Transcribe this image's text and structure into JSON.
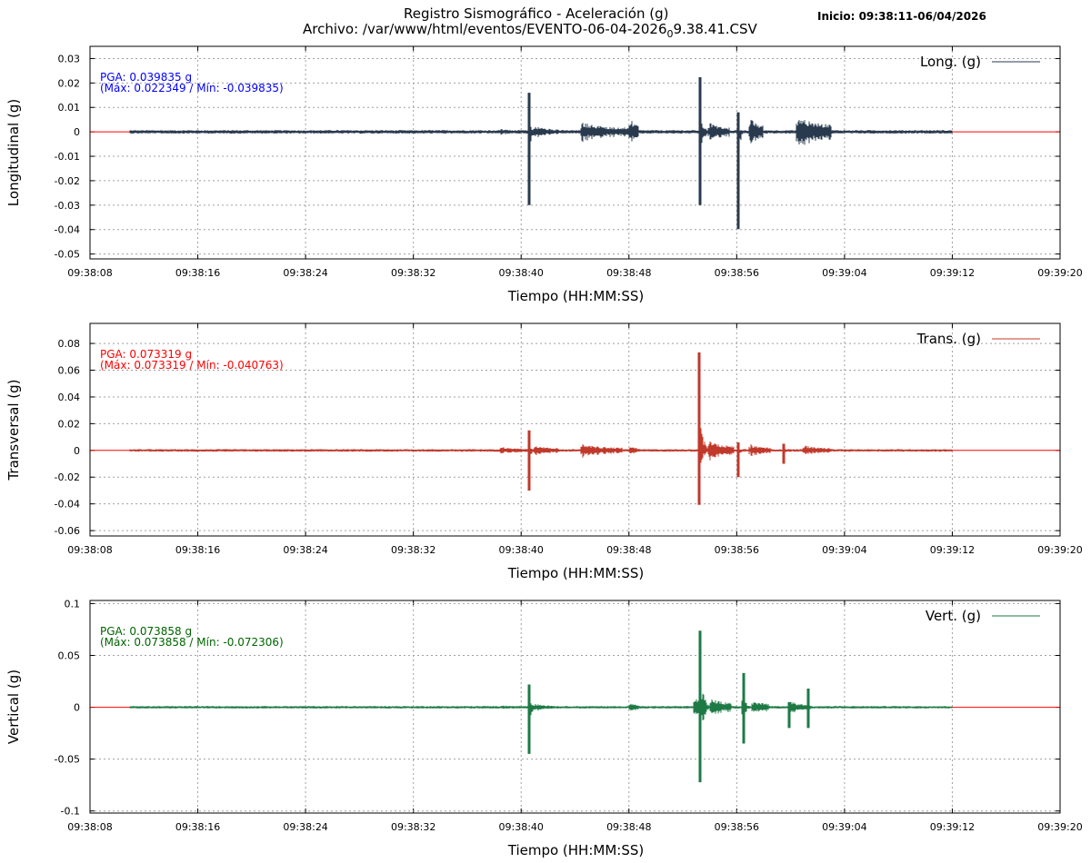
{
  "header": {
    "title_line1": "Registro Sismográfico - Aceleración (g)",
    "title_line2_prefix": "Archivo: /var/www/html/eventos/EVENTO-06-04-2026",
    "title_line2_sub": "0",
    "title_line2_suffix": "9.38.41.CSV",
    "start_info": "Inicio: 09:38:11-06/04/2026"
  },
  "chart_data": [
    {
      "type": "line",
      "ylabel": "Longitudinal (g)",
      "xlabel": "Tiempo (HH:MM:SS)",
      "legend": "Long. (g)",
      "legend_position": "top-right",
      "color": "#2a3a4e",
      "zero_line_color": "#ff0000",
      "pga_color": "#0000ff",
      "pga_line1": "PGA: 0.039835 g",
      "pga_line2": "(Máx: 0.022349 / Mín: -0.039835)",
      "max": 0.022349,
      "min": -0.039835,
      "ylim": [
        -0.052,
        0.035
      ],
      "yticks": [
        -0.05,
        -0.04,
        -0.03,
        -0.02,
        -0.01,
        0,
        0.01,
        0.02,
        0.03
      ],
      "ytick_labels": [
        "-0.05",
        "-0.04",
        "-0.03",
        "-0.02",
        "-0.01",
        "0",
        "0.01",
        "0.02",
        "0.03"
      ],
      "xlim_seconds": [
        0,
        72
      ],
      "xticks": [
        "09:38:08",
        "09:38:16",
        "09:38:24",
        "09:38:32",
        "09:38:40",
        "09:38:48",
        "09:38:56",
        "09:39:04",
        "09:39:12",
        "09:39:20"
      ],
      "grid": true,
      "record_span": [
        "09:38:11",
        "09:39:12"
      ],
      "noise_amplitude": 0.0006,
      "events": [
        {
          "t": "09:38:38.5",
          "amp": 0.0012,
          "dur": 2.0
        },
        {
          "t": "09:38:40.6",
          "pos": 0.016,
          "neg": -0.03,
          "dur": 0.5
        },
        {
          "t": "09:38:41.0",
          "amp": 0.0025,
          "dur": 1.8
        },
        {
          "t": "09:38:44.5",
          "amp": 0.004,
          "dur": 3.5
        },
        {
          "t": "09:38:48.1",
          "amp": 0.006,
          "dur": 0.6
        },
        {
          "t": "09:38:53.3",
          "pos": 0.022349,
          "neg": -0.03,
          "dur": 0.6
        },
        {
          "t": "09:38:54.0",
          "amp": 0.004,
          "dur": 1.5
        },
        {
          "t": "09:38:56.1",
          "pos": 0.008,
          "neg": -0.039835,
          "dur": 0.4
        },
        {
          "t": "09:38:57.0",
          "amp": 0.006,
          "dur": 1.0
        },
        {
          "t": "09:39:00.5",
          "amp": 0.007,
          "dur": 2.5
        }
      ]
    },
    {
      "type": "line",
      "ylabel": "Transversal (g)",
      "xlabel": "Tiempo (HH:MM:SS)",
      "legend": "Trans. (g)",
      "legend_position": "top-right",
      "color": "#c0392b",
      "zero_line_color": "#ff0000",
      "pga_color": "#ff0000",
      "pga_line1": "PGA: 0.073319 g",
      "pga_line2": "(Máx: 0.073319 / Mín: -0.040763)",
      "max": 0.073319,
      "min": -0.040763,
      "ylim": [
        -0.064,
        0.095
      ],
      "yticks": [
        -0.06,
        -0.04,
        -0.02,
        0,
        0.02,
        0.04,
        0.06,
        0.08
      ],
      "ytick_labels": [
        "-0.06",
        "-0.04",
        "-0.02",
        "0",
        "0.02",
        "0.04",
        "0.06",
        "0.08"
      ],
      "xlim_seconds": [
        0,
        72
      ],
      "xticks": [
        "09:38:08",
        "09:38:16",
        "09:38:24",
        "09:38:32",
        "09:38:40",
        "09:38:48",
        "09:38:56",
        "09:39:04",
        "09:39:12",
        "09:39:20"
      ],
      "grid": true,
      "record_span": [
        "09:38:11",
        "09:39:12"
      ],
      "noise_amplitude": 0.0008,
      "events": [
        {
          "t": "09:38:38.5",
          "amp": 0.003,
          "dur": 2.0
        },
        {
          "t": "09:38:40.6",
          "pos": 0.015,
          "neg": -0.03,
          "dur": 0.5
        },
        {
          "t": "09:38:41.0",
          "amp": 0.004,
          "dur": 1.8
        },
        {
          "t": "09:38:44.5",
          "amp": 0.005,
          "dur": 3.0
        },
        {
          "t": "09:38:48.1",
          "amp": 0.004,
          "dur": 0.6
        },
        {
          "t": "09:38:53.2",
          "pos": 0.073319,
          "neg": -0.040763,
          "dur": 0.8
        },
        {
          "t": "09:38:54.0",
          "amp": 0.008,
          "dur": 1.8
        },
        {
          "t": "09:38:56.1",
          "pos": 0.006,
          "neg": -0.02,
          "dur": 0.5
        },
        {
          "t": "09:38:57.0",
          "amp": 0.005,
          "dur": 1.5
        },
        {
          "t": "09:38:59.5",
          "pos": 0.005,
          "neg": -0.01,
          "dur": 0.6
        },
        {
          "t": "09:39:01.0",
          "amp": 0.004,
          "dur": 2.0
        }
      ]
    },
    {
      "type": "line",
      "ylabel": "Vertical (g)",
      "xlabel": "Tiempo (HH:MM:SS)",
      "legend": "Vert. (g)",
      "legend_position": "top-right",
      "color": "#1e7a45",
      "zero_line_color": "#ff0000",
      "pga_color": "#006400",
      "pga_line1": "PGA: 0.073858 g",
      "pga_line2": "(Máx: 0.073858 / Mín: -0.072306)",
      "max": 0.073858,
      "min": -0.072306,
      "ylim": [
        -0.102,
        0.103
      ],
      "yticks": [
        -0.1,
        -0.05,
        0,
        0.05,
        0.1
      ],
      "ytick_labels": [
        "-0.1",
        "-0.05",
        "0",
        "0.05",
        "0.1"
      ],
      "xlim_seconds": [
        0,
        72
      ],
      "xticks": [
        "09:38:08",
        "09:38:16",
        "09:38:24",
        "09:38:32",
        "09:38:40",
        "09:38:48",
        "09:38:56",
        "09:39:04",
        "09:39:12",
        "09:39:20"
      ],
      "grid": true,
      "record_span": [
        "09:38:11",
        "09:39:12"
      ],
      "noise_amplitude": 0.001,
      "events": [
        {
          "t": "09:38:38.5",
          "amp": 0.002,
          "dur": 2.0
        },
        {
          "t": "09:38:40.6",
          "pos": 0.022,
          "neg": -0.045,
          "dur": 0.5
        },
        {
          "t": "09:38:41.0",
          "amp": 0.004,
          "dur": 1.5
        },
        {
          "t": "09:38:48.1",
          "amp": 0.005,
          "dur": 0.6
        },
        {
          "t": "09:38:52.9",
          "amp": 0.012,
          "dur": 0.5
        },
        {
          "t": "09:38:53.3",
          "pos": 0.073858,
          "neg": -0.072306,
          "dur": 0.8
        },
        {
          "t": "09:38:54.1",
          "amp": 0.01,
          "dur": 1.5
        },
        {
          "t": "09:38:56.5",
          "pos": 0.033,
          "neg": -0.035,
          "dur": 0.6
        },
        {
          "t": "09:38:57.2",
          "amp": 0.008,
          "dur": 1.2
        },
        {
          "t": "09:39:00.0",
          "amp": 0.006,
          "dur": 1.5
        },
        {
          "t": "09:38:59.9",
          "pos": 0.005,
          "neg": -0.02,
          "dur": 0.4
        },
        {
          "t": "09:39:01.3",
          "pos": 0.018,
          "neg": -0.02,
          "dur": 0.4
        }
      ]
    }
  ]
}
